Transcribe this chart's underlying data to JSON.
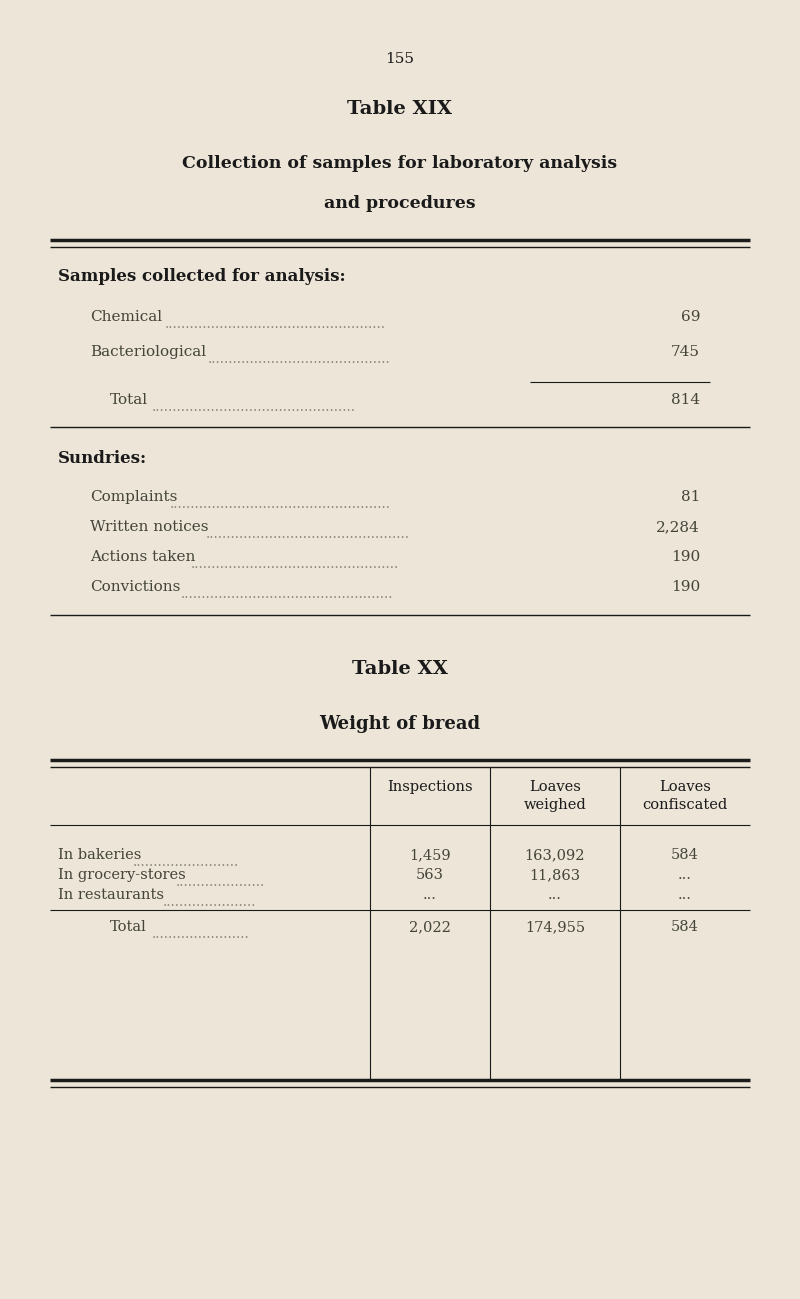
{
  "bg_color": "#ece5d8",
  "text_color": "#1a1a1a",
  "dot_color": "#888878",
  "light_color": "#444438",
  "page_number": "155",
  "table_xix_title": "Table XIX",
  "subtitle1": "Collection of samples for laboratory analysis",
  "subtitle2": "and procedures",
  "sec1_header": "Samples collected for analysis:",
  "sec1_items": [
    [
      "Chemical",
      "69",
      false
    ],
    [
      "Bacteriological",
      "745",
      false
    ],
    [
      "Total",
      "814",
      true
    ]
  ],
  "sec2_header": "Sundries:",
  "sec2_items": [
    [
      "Complaints",
      "81"
    ],
    [
      "Written notices",
      "2,284"
    ],
    [
      "Actions taken",
      "190"
    ],
    [
      "Convictions",
      "190"
    ]
  ],
  "table_xx_title": "Table XX",
  "table_xx_subtitle": "Weight of bread",
  "table_xx_headers": [
    "Inspections",
    "Loaves\nweighed",
    "Loaves\nconfiscated"
  ],
  "table_xx_rows": [
    [
      "In bakeries",
      "1,459",
      "163,092",
      "584"
    ],
    [
      "In grocery-stores",
      "563",
      "11,863",
      "..."
    ],
    [
      "In restaurants",
      "...",
      "...",
      "..."
    ],
    [
      "Total",
      "2,022",
      "174,955",
      "584"
    ]
  ]
}
